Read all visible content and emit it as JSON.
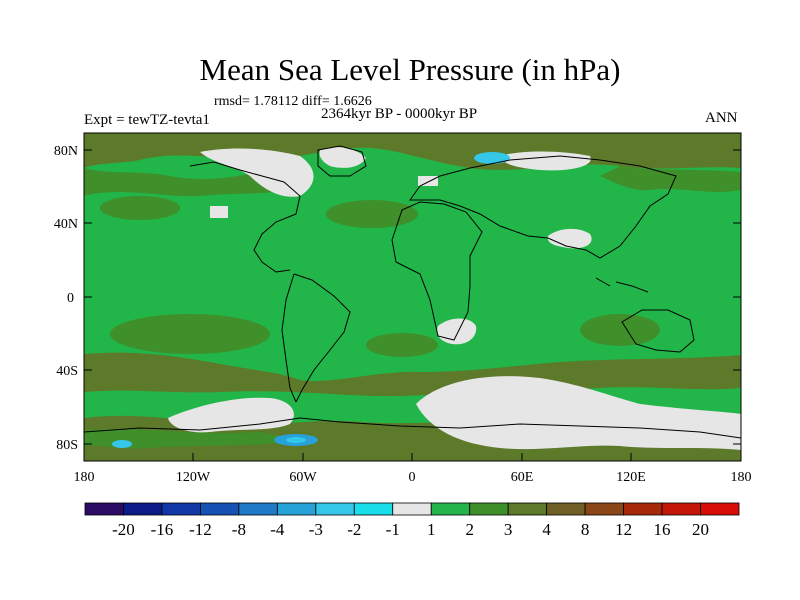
{
  "title": "Mean Sea Level Pressure (in hPa)",
  "stats": "rmsd= 1.78112 diff= 1.6626",
  "period": "2364kyr BP - 0000kyr BP",
  "experiment": "Expt = tewTZ-tevta1",
  "season": "ANN",
  "lat_ticks": [
    "80N",
    "40N",
    "0",
    "40S",
    "80S"
  ],
  "lon_ticks": [
    "180",
    "120W",
    "60W",
    "0",
    "60E",
    "120E",
    "180"
  ],
  "colorbar": {
    "labels": [
      "-20",
      "-16",
      "-12",
      "-8",
      "-4",
      "-3",
      "-2",
      "-1",
      "1",
      "2",
      "3",
      "4",
      "8",
      "12",
      "16",
      "20"
    ],
    "colors": [
      "#2b0b63",
      "#0c1d8a",
      "#1136a6",
      "#1552b4",
      "#1f79c6",
      "#27a2d9",
      "#35c7ea",
      "#19dde8",
      "#e6e6e6",
      "#22b64a",
      "#3f8f2a",
      "#5c7a2a",
      "#6f5f24",
      "#8a4616",
      "#a8280c",
      "#c41608",
      "#d80d06"
    ]
  },
  "map_colors": {
    "ocean_dominant": "#22b64a",
    "mid_high": "#3f8f2a",
    "high": "#5c7a2a",
    "near_zero": "#e6e6e6",
    "neg_low": "#35c7ea",
    "neg_mid": "#27a2d9"
  }
}
